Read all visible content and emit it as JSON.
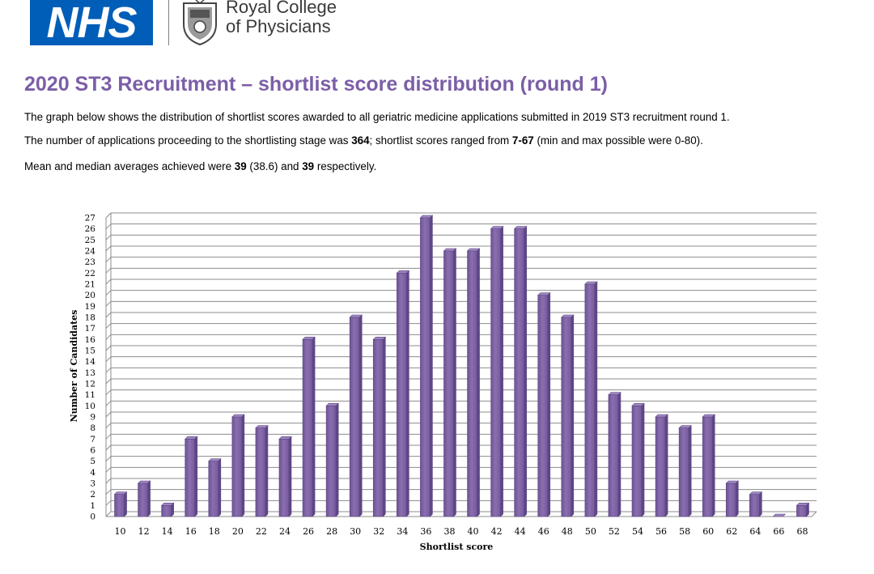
{
  "header": {
    "nhs_logo_text": "NHS",
    "rcp_name_line1": "Royal College",
    "rcp_name_line2": "of Physicians"
  },
  "page": {
    "title": "2020 ST3 Recruitment – shortlist score distribution (round 1)",
    "para1": "The graph below shows the distribution of shortlist scores awarded to all geriatric medicine applications submitted in 2019 ST3 recruitment round 1.",
    "para2_a": "The number of applications proceeding to the shortlisting stage was ",
    "para2_count": "364",
    "para2_b": "; shortlist scores ranged from ",
    "para2_range": "7-67",
    "para2_c": " (min and max possible were 0-80).",
    "para3_a": "Mean and median averages achieved were ",
    "para3_mean": "39",
    "para3_b": " (38.6) and ",
    "para3_median": "39",
    "para3_c": " respectively."
  },
  "colors": {
    "title": "#7B5EA7",
    "nhs_blue": "#005EB8",
    "bar": "#8064A2"
  },
  "chart_data": {
    "type": "bar",
    "title": "",
    "xlabel": "Shortlist score",
    "ylabel": "Number of Candidates",
    "categories": [
      "10",
      "12",
      "14",
      "16",
      "18",
      "20",
      "22",
      "24",
      "26",
      "28",
      "30",
      "32",
      "34",
      "36",
      "38",
      "40",
      "42",
      "44",
      "46",
      "48",
      "50",
      "52",
      "54",
      "56",
      "58",
      "60",
      "62",
      "64",
      "66",
      "68"
    ],
    "values": [
      2,
      3,
      1,
      7,
      5,
      9,
      8,
      7,
      16,
      10,
      18,
      16,
      22,
      27,
      24,
      24,
      26,
      26,
      20,
      18,
      21,
      11,
      10,
      9,
      8,
      9,
      3,
      2,
      0,
      1
    ],
    "ylim": [
      0,
      27
    ],
    "yticks": [
      "0",
      "1",
      "2",
      "3",
      "4",
      "5",
      "6",
      "7",
      "8",
      "9",
      "10",
      "11",
      "12",
      "13",
      "14",
      "15",
      "16",
      "17",
      "18",
      "19",
      "20",
      "21",
      "22",
      "23",
      "24",
      "25",
      "26",
      "27"
    ],
    "grid": true,
    "legend": "none"
  }
}
